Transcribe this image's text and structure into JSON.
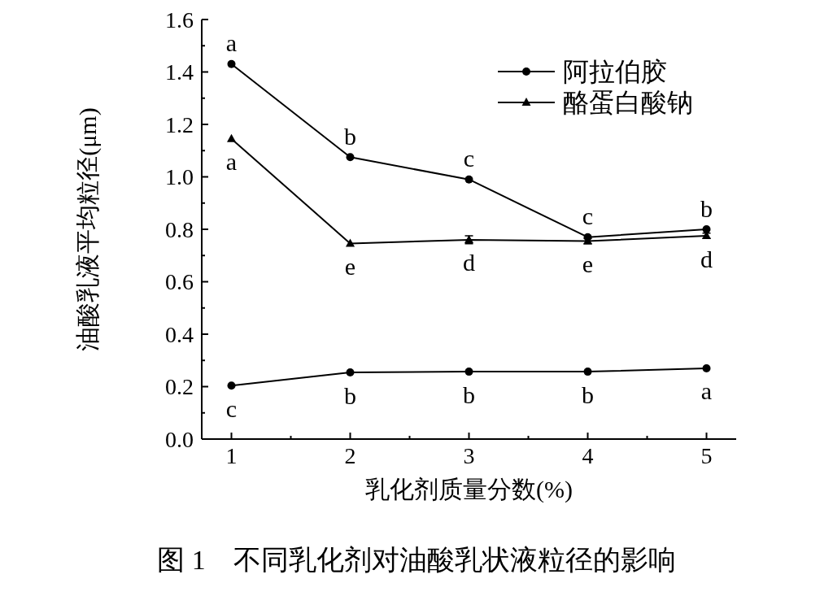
{
  "chart_data": {
    "type": "line",
    "xlabel": "乳化剂质量分数(%)",
    "ylabel": "油酸乳液平均粒径(μm)",
    "x": [
      1,
      2,
      3,
      4,
      5
    ],
    "series": [
      {
        "name": "阿拉伯胶",
        "color": "#000000",
        "marker": "circle",
        "values": [
          1.43,
          1.075,
          0.99,
          0.77,
          0.8
        ]
      },
      {
        "color": "#000000",
        "marker": "circle",
        "values": [
          0.204,
          0.254,
          0.257,
          0.257,
          0.27
        ]
      },
      {
        "name": "酪蛋白酸钠",
        "color": "#000000",
        "marker": "triangle",
        "values": [
          1.145,
          0.746,
          0.76,
          0.755,
          0.775
        ],
        "errors": [
          null,
          null,
          0.015,
          0.01,
          0.01
        ]
      }
    ],
    "xlim": [
      0.75,
      5.25
    ],
    "xticks": [
      1,
      2,
      3,
      4,
      5
    ],
    "ylim": [
      0,
      1.6
    ],
    "yticks": [
      {
        "value": 0,
        "label": "0.0"
      },
      0.2,
      0.4,
      0.6,
      0.8,
      {
        "value": 1,
        "label": "1.0"
      },
      1.2,
      1.4,
      1.6
    ],
    "legend": "top right",
    "grid": false,
    "annotations": [
      {
        "text": "a",
        "x": 1,
        "y": 1.43
      },
      {
        "text": "b",
        "x": 2,
        "y": 1.075
      },
      {
        "text": "c",
        "x": 3,
        "y": 0.99
      },
      {
        "text": "c",
        "x": 4,
        "y": 0.77
      },
      {
        "text": "b",
        "x": 5,
        "y": 0.8
      },
      {
        "text": "a",
        "x": 1,
        "y": 1.145
      },
      {
        "text": "e",
        "x": 2,
        "y": 0.746
      },
      {
        "text": "d",
        "x": 3,
        "y": 0.76
      },
      {
        "text": "e",
        "x": 4,
        "y": 0.755
      },
      {
        "text": "d",
        "x": 5,
        "y": 0.775
      },
      {
        "text": "c",
        "x": 1,
        "y": 0.204
      },
      {
        "text": "b",
        "x": 2,
        "y": 0.254
      },
      {
        "text": "b",
        "x": 3,
        "y": 0.257
      },
      {
        "text": "b",
        "x": 4,
        "y": 0.257
      },
      {
        "text": "a",
        "x": 5,
        "y": 0.27
      },
      "图 1　不同乳化剂对油酸乳状液粒径的影响"
    ]
  }
}
